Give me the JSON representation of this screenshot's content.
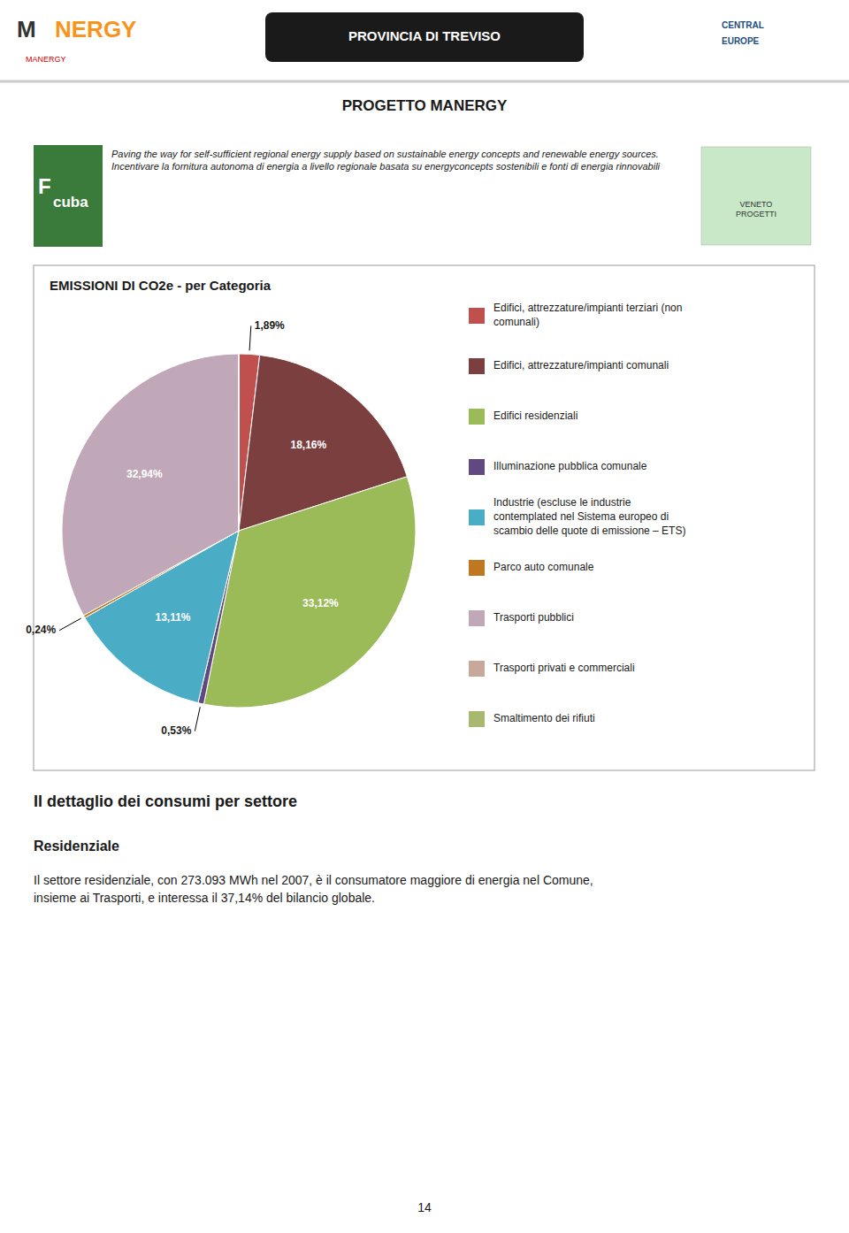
{
  "chart_data": {
    "type": "pie",
    "title": "EMISSIONI DI CO2e - per Categoria",
    "categories": [
      "Edifici, attrezzature/impianti terziari (non\ncomunali)",
      "Edifici, attrezzature/impianti comunali",
      "Edifici residenziali",
      "Illuminazione pubblica comunale",
      "Industrie (escluse le industrie\ncontemplated nel Sistema europeo di\nscambio delle quote di emissione – ETS)",
      "Parco auto comunale",
      "Trasporti pubblici",
      "Trasporti privati e commerciali",
      "Smaltimento dei rifiuti"
    ],
    "values": [
      1.89,
      18.16,
      33.12,
      0.53,
      13.11,
      0.24,
      32.94,
      0.005,
      0.005
    ],
    "value_labels": [
      "1,89%",
      "18,16%",
      "33,12%",
      "0,53%",
      "13,11%",
      "0,24%",
      "32,94%",
      null,
      null
    ],
    "colors": [
      "#C0504D",
      "#7B3F3F",
      "#9BBB59",
      "#604880",
      "#4BACC6",
      "#C07820",
      "#C0A8B8",
      "#C8A898",
      "#A8B870"
    ],
    "data_labels": true,
    "legend": "right"
  },
  "page": {
    "title": "PROGETTO MANERGY",
    "subtitle": "Paving the way for self-sufficient regional energy supply based on sustainable energy concepts and renewable energy sources. Incentivare la fornitura autonoma di energia a livello regionale basata su energyconcepts sostenibili e fonti di energia rinnovabili",
    "section_title": "Il dettaglio dei consumi per settore",
    "subsection_title": "Residenziale",
    "body_text": "Il settore residenziale, con 273.093 MWh nel 2007, è il consumatore maggiore di energia nel Comune,\ninsieme ai Trasporti, e interessa il 37,14% del bilancio globale.",
    "page_number": "14",
    "annotations": [
      "M",
      "NERGY",
      "MANERGY",
      "PROVINCIA DI TREVISO",
      "CENTRAL",
      "EUROPE",
      "F",
      "cuba",
      "VENETO\nPROGETTI"
    ]
  }
}
